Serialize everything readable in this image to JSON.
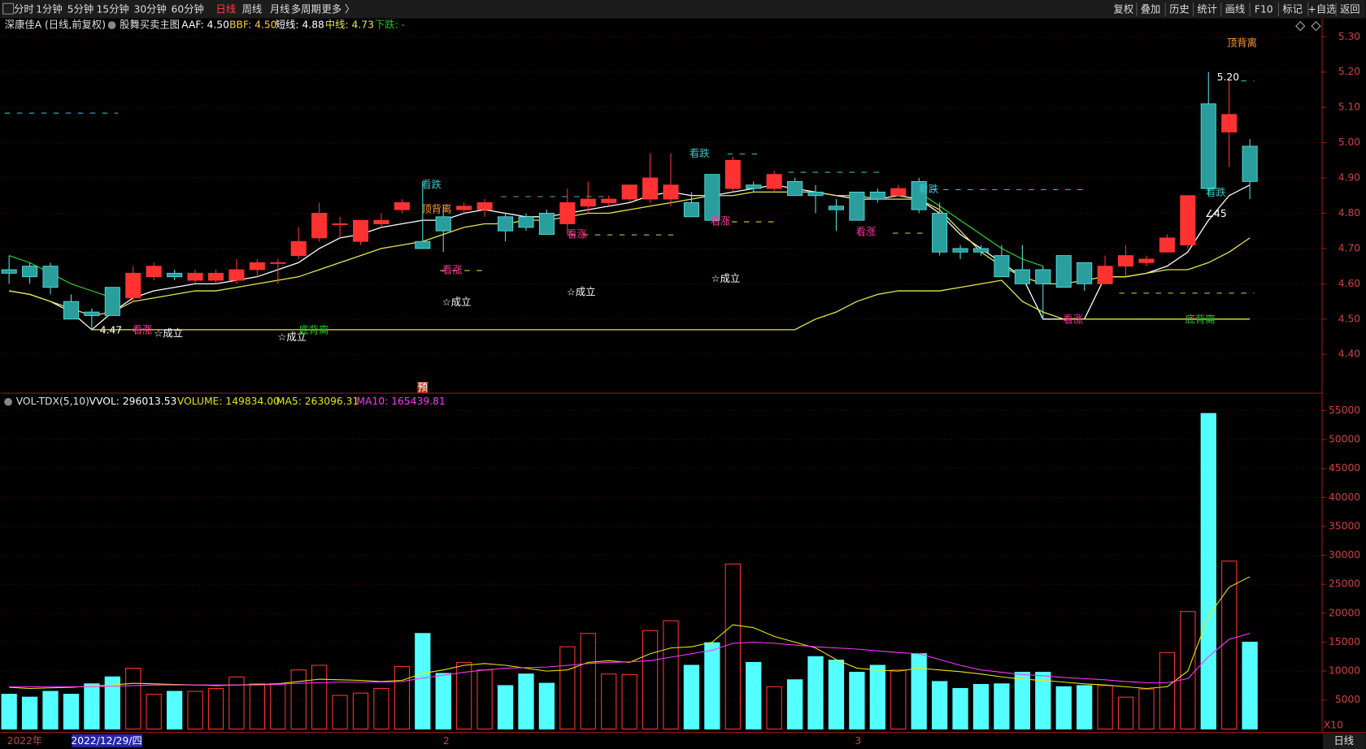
{
  "toolbar": {
    "left": [
      "分时",
      "1分钟",
      "5分钟",
      "15分钟",
      "30分钟",
      "60分钟",
      "日线",
      "周线",
      "月线",
      "多周期",
      "更多 〉"
    ],
    "active": 6,
    "right": [
      "复权",
      "叠加",
      "历史",
      "统计",
      "画线",
      "F10",
      "标记",
      "+自选",
      "返回"
    ]
  },
  "chart_data": [
    {
      "type": "candlestick",
      "title": "深康佳A (日线,前复权)",
      "indicator": "股舞买卖主图",
      "legend": [
        "AAF: 4.50",
        "BBF: 4.50",
        "短线: 4.88",
        "中线: 4.73",
        "下跌: -"
      ],
      "up_color": "#ff3232",
      "down_color": "#2a9d9d",
      "ylim": [
        4.29,
        5.35
      ],
      "yticks": [
        {
          "value": 4.4,
          "label": "4.40"
        },
        {
          "value": 4.5,
          "label": "4.50"
        },
        {
          "value": 4.6,
          "label": "4.60"
        },
        {
          "value": 4.7,
          "label": "4.70"
        },
        {
          "value": 4.8,
          "label": "4.80"
        },
        {
          "value": 4.9,
          "label": "4.90"
        },
        {
          "value": 5.0,
          "label": "5.00"
        },
        {
          "value": 5.1,
          "label": "5.10"
        },
        {
          "value": 5.2,
          "label": "5.20"
        },
        {
          "value": 5.3,
          "label": "5.30"
        }
      ],
      "grid": true,
      "open": [
        4.64,
        4.65,
        4.65,
        4.55,
        4.52,
        4.59,
        4.56,
        4.62,
        4.63,
        4.61,
        4.61,
        4.61,
        4.64,
        4.66,
        4.68,
        4.73,
        4.77,
        4.72,
        4.77,
        4.81,
        4.72,
        4.79,
        4.81,
        4.81,
        4.79,
        4.79,
        4.8,
        4.77,
        4.82,
        4.83,
        4.84,
        4.84,
        4.84,
        4.83,
        4.91,
        4.87,
        4.88,
        4.87,
        4.89,
        4.86,
        4.82,
        4.86,
        4.86,
        4.85,
        4.89,
        4.8,
        4.7,
        4.7,
        4.68,
        4.64,
        4.64,
        4.68,
        4.66,
        4.6,
        4.65,
        4.66,
        4.69,
        4.71,
        5.11,
        5.03,
        4.99
      ],
      "high": [
        4.68,
        4.66,
        4.66,
        4.57,
        4.53,
        4.59,
        4.65,
        4.66,
        4.64,
        4.64,
        4.64,
        4.67,
        4.67,
        4.67,
        4.76,
        4.83,
        4.79,
        4.78,
        4.8,
        4.84,
        4.89,
        4.82,
        4.83,
        4.84,
        4.8,
        4.8,
        4.81,
        4.87,
        4.89,
        4.85,
        4.88,
        4.97,
        4.97,
        4.86,
        4.91,
        4.96,
        4.89,
        4.92,
        4.9,
        4.88,
        4.84,
        4.86,
        4.87,
        4.88,
        4.9,
        4.83,
        4.71,
        4.71,
        4.71,
        4.71,
        4.65,
        4.68,
        4.66,
        4.68,
        4.71,
        4.68,
        4.74,
        4.85,
        5.2,
        5.18,
        5.01
      ],
      "low": [
        4.6,
        4.6,
        4.57,
        4.5,
        4.47,
        4.51,
        4.55,
        4.61,
        4.61,
        4.6,
        4.6,
        4.6,
        4.62,
        4.6,
        4.67,
        4.72,
        4.73,
        4.71,
        4.76,
        4.8,
        4.7,
        4.69,
        4.8,
        4.79,
        4.72,
        4.75,
        4.74,
        4.74,
        4.8,
        4.82,
        4.83,
        4.83,
        4.82,
        4.79,
        4.78,
        4.86,
        4.86,
        4.86,
        4.85,
        4.8,
        4.75,
        4.78,
        4.83,
        4.85,
        4.8,
        4.68,
        4.67,
        4.68,
        4.62,
        4.6,
        4.5,
        4.59,
        4.58,
        4.6,
        4.62,
        4.65,
        4.69,
        4.7,
        4.85,
        4.93,
        4.84
      ],
      "close": [
        4.63,
        4.62,
        4.59,
        4.5,
        4.51,
        4.51,
        4.63,
        4.65,
        4.62,
        4.63,
        4.63,
        4.64,
        4.66,
        4.66,
        4.72,
        4.8,
        4.77,
        4.78,
        4.78,
        4.83,
        4.7,
        4.75,
        4.82,
        4.83,
        4.75,
        4.76,
        4.74,
        4.83,
        4.84,
        4.84,
        4.88,
        4.9,
        4.88,
        4.79,
        4.78,
        4.95,
        4.87,
        4.91,
        4.85,
        4.85,
        4.81,
        4.78,
        4.84,
        4.87,
        4.81,
        4.69,
        4.69,
        4.69,
        4.62,
        4.6,
        4.6,
        4.59,
        4.6,
        4.65,
        4.68,
        4.67,
        4.73,
        4.85,
        4.87,
        5.08,
        4.89
      ],
      "series": [
        {
          "name": "短线",
          "color": "#ffffff",
          "values": [
            4.58,
            4.57,
            4.55,
            4.52,
            4.47,
            4.52,
            4.56,
            4.58,
            4.59,
            4.6,
            4.6,
            4.61,
            4.62,
            4.64,
            4.66,
            4.7,
            4.73,
            4.74,
            4.76,
            4.77,
            4.78,
            4.78,
            4.8,
            4.81,
            4.8,
            4.79,
            4.79,
            4.8,
            4.81,
            4.82,
            4.83,
            4.85,
            4.86,
            4.85,
            4.85,
            4.86,
            4.87,
            4.88,
            4.87,
            4.86,
            4.85,
            4.84,
            4.84,
            4.85,
            4.84,
            4.8,
            4.74,
            4.7,
            4.66,
            4.62,
            4.5,
            4.5,
            4.5,
            4.62,
            4.62,
            4.63,
            4.65,
            4.69,
            4.78,
            4.85,
            4.88
          ]
        },
        {
          "name": "中线",
          "color": "#e6e64c",
          "values": [
            4.58,
            4.57,
            4.55,
            4.53,
            4.51,
            4.52,
            4.55,
            4.56,
            4.57,
            4.58,
            4.58,
            4.59,
            4.6,
            4.61,
            4.62,
            4.64,
            4.66,
            4.68,
            4.7,
            4.71,
            4.72,
            4.74,
            4.76,
            4.77,
            4.77,
            4.78,
            4.78,
            4.79,
            4.8,
            4.8,
            4.81,
            4.82,
            4.83,
            4.84,
            4.85,
            4.85,
            4.86,
            4.86,
            4.86,
            4.86,
            4.85,
            4.85,
            4.84,
            4.84,
            4.84,
            4.81,
            4.75,
            4.69,
            4.65,
            4.62,
            4.6,
            4.6,
            4.61,
            4.62,
            4.62,
            4.63,
            4.64,
            4.64,
            4.66,
            4.69,
            4.73
          ]
        },
        {
          "name": "下跌",
          "color": "#22c422",
          "values": [
            4.68,
            4.66,
            4.63,
            4.6,
            4.58,
            4.56,
            null,
            null,
            null,
            null,
            null,
            null,
            null,
            null,
            null,
            null,
            null,
            null,
            null,
            null,
            null,
            null,
            null,
            null,
            null,
            null,
            null,
            null,
            null,
            null,
            null,
            null,
            null,
            null,
            null,
            null,
            null,
            null,
            null,
            null,
            null,
            null,
            null,
            null,
            4.86,
            4.82,
            4.78,
            4.74,
            4.7,
            4.67,
            4.65,
            null,
            null,
            null,
            null,
            null,
            null,
            null,
            null,
            null,
            null
          ]
        },
        {
          "color": "#e6e64c",
          "values": [
            null,
            null,
            null,
            null,
            4.47,
            4.47,
            4.47,
            4.47,
            4.47,
            4.47,
            4.47,
            4.47,
            4.47,
            4.47,
            4.47,
            4.47,
            4.47,
            4.47,
            4.47,
            4.47,
            4.47,
            4.47,
            4.47,
            4.47,
            4.47,
            4.47,
            4.47,
            4.47,
            4.47,
            4.47,
            4.47,
            4.47,
            4.47,
            4.47,
            4.47,
            4.47,
            4.47,
            4.47,
            4.47,
            4.5,
            4.52,
            4.55,
            4.57,
            4.58,
            4.58,
            4.58,
            4.59,
            4.6,
            4.61,
            4.55,
            4.52,
            4.5,
            4.5,
            4.5,
            4.5,
            4.5,
            4.5,
            4.5,
            4.5,
            4.5,
            4.5
          ]
        }
      ],
      "annotations": [
        "顶背离",
        "5.20",
        "看跌",
        "看跌",
        "顶背离",
        "看跌",
        "看跌",
        "∠45",
        "看涨",
        "看涨",
        "看涨",
        "看涨",
        "☆成立",
        "☆成立",
        "☆成立",
        "4.47",
        "看涨",
        "☆成立",
        "☆成立",
        "底背离",
        "看涨",
        "底背离",
        "预"
      ]
    },
    {
      "type": "bar",
      "title": "VOL-TDX(5,10)",
      "legend": [
        "VVOL: 296013.53",
        "VOLUME: 149834.00",
        "MA5: 263096.31",
        "MA10: 165439.81"
      ],
      "up_color": "#ff3232",
      "down_color": "#54ffff",
      "scale_note": "X10",
      "ylim": [
        0,
        56500
      ],
      "yticks": [
        5000,
        10000,
        15000,
        20000,
        25000,
        30000,
        35000,
        40000,
        45000,
        50000,
        55000
      ],
      "grid": true,
      "values": [
        6000,
        5500,
        6500,
        6000,
        7800,
        9000,
        10500,
        6000,
        6500,
        6500,
        7000,
        9000,
        7800,
        7800,
        10200,
        11000,
        5800,
        6200,
        7000,
        10800,
        16500,
        9600,
        11500,
        10200,
        7500,
        9500,
        7900,
        14200,
        16500,
        9500,
        9400,
        17000,
        18700,
        11000,
        14900,
        28500,
        11500,
        7300,
        8500,
        12500,
        11900,
        9800,
        11000,
        10200,
        13000,
        8200,
        7000,
        7700,
        7800,
        9800,
        9800,
        7300,
        7500,
        7500,
        5500,
        6900,
        13200,
        20300,
        54500,
        29000,
        15000
      ],
      "series": [
        {
          "name": "MA5",
          "color": "#e6e600",
          "values": [
            7200,
            7000,
            7100,
            7200,
            7400,
            7600,
            7900,
            7800,
            7700,
            7600,
            7500,
            7600,
            7700,
            7800,
            8200,
            8600,
            8500,
            8400,
            8200,
            8400,
            9600,
            10200,
            11000,
            11300,
            11000,
            10500,
            10000,
            10200,
            11500,
            11800,
            11500,
            13000,
            14000,
            14200,
            15000,
            18000,
            17500,
            16000,
            15000,
            14000,
            12000,
            10500,
            10200,
            10000,
            10500,
            10200,
            9900,
            9500,
            9000,
            8600,
            8400,
            8100,
            7800,
            7600,
            7300,
            7000,
            7300,
            10000,
            19500,
            24500,
            26300
          ]
        },
        {
          "name": "MA10",
          "color": "#ff33ff",
          "values": [
            7300,
            7300,
            7300,
            7300,
            7300,
            7400,
            7500,
            7600,
            7600,
            7600,
            7600,
            7600,
            7600,
            7700,
            7900,
            8000,
            8100,
            8100,
            8100,
            8200,
            8800,
            9300,
            9800,
            10200,
            10500,
            10600,
            10700,
            11000,
            11300,
            11500,
            11600,
            11800,
            12400,
            13000,
            13600,
            14800,
            15000,
            14800,
            14500,
            14200,
            14000,
            13800,
            13500,
            13200,
            13000,
            12000,
            11000,
            10200,
            9800,
            9400,
            9200,
            8900,
            8700,
            8500,
            8200,
            8000,
            8000,
            8700,
            12500,
            15500,
            16500
          ]
        }
      ]
    }
  ],
  "footer": {
    "labels": [
      "2022年",
      "2022/12/29/四",
      "2",
      "3"
    ],
    "period": "日线"
  }
}
